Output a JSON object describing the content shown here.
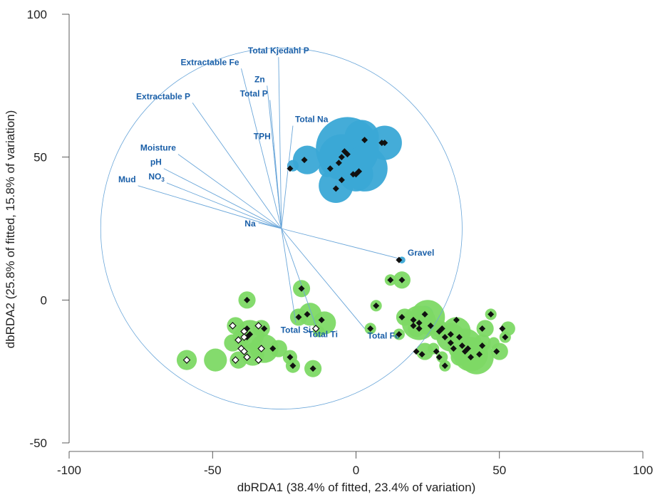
{
  "chart_data": {
    "type": "scatter",
    "title": "",
    "xlabel": "dbRDA1 (38.4% of fitted, 23.4% of variation)",
    "ylabel": "dbRDA2 (25.8% of fitted, 15.8% of variation)",
    "xlim": [
      -100,
      100
    ],
    "ylim": [
      -50,
      100
    ],
    "x_ticks": [
      "-100",
      "-50",
      "0",
      "50",
      "100"
    ],
    "y_ticks": [
      "100",
      "50",
      "0",
      "-50"
    ],
    "grid": false,
    "legend": "none",
    "colors": {
      "blue_bubble": "#3aa8d6",
      "green_bubble": "#7dd965",
      "vector": "#6aa6d9",
      "vector_label": "#1a5fa8",
      "marker": "#111111"
    },
    "circle": {
      "center": [
        -26,
        25
      ],
      "radius": 63
    },
    "vectors": [
      {
        "label": "Total Kjedahl P",
        "x": -27,
        "y": 85
      },
      {
        "label": "Extractable Fe",
        "x": -40,
        "y": 81
      },
      {
        "label": "Zn",
        "x": -31,
        "y": 75
      },
      {
        "label": "Total P",
        "x": -30,
        "y": 70
      },
      {
        "label": "Extractable P",
        "x": -57,
        "y": 69
      },
      {
        "label": "Total Na",
        "x": -22,
        "y": 61
      },
      {
        "label": "TPH",
        "x": -29,
        "y": 55
      },
      {
        "label": "Moisture",
        "x": -62,
        "y": 51
      },
      {
        "label": "pH",
        "x": -67,
        "y": 46
      },
      {
        "label": "NO",
        "sub": "3",
        "x": -66,
        "y": 41
      },
      {
        "label": "Mud",
        "x": -76,
        "y": 40
      },
      {
        "label": "Na",
        "x": -34,
        "y": 27
      },
      {
        "label": "Gravel",
        "x": 17,
        "y": 14
      },
      {
        "label": "Total Si",
        "x": -21,
        "y": -8
      },
      {
        "label": "Total Ti",
        "x": -14,
        "y": -9
      },
      {
        "label": "Total Fe",
        "x": 3,
        "y": -10
      }
    ],
    "series": [
      {
        "color": "blue",
        "points": [
          [
            -22,
            47,
            2
          ],
          [
            -17,
            49,
            5
          ],
          [
            -10,
            46,
            3
          ],
          [
            -7,
            40,
            6
          ],
          [
            -5,
            50,
            8
          ],
          [
            -3,
            53,
            11
          ],
          [
            0,
            44,
            6
          ],
          [
            2,
            57,
            6
          ],
          [
            3,
            46,
            8
          ],
          [
            10,
            55,
            6
          ],
          [
            16,
            14,
            1.2
          ],
          [
            24,
            -5,
            3
          ],
          [
            22,
            -7,
            2
          ]
        ]
      },
      {
        "color": "green",
        "points": [
          [
            -59,
            -21,
            3.5
          ],
          [
            -49,
            -21,
            4
          ],
          [
            -41,
            -21,
            3
          ],
          [
            -37,
            -12,
            5
          ],
          [
            -40,
            -13,
            3
          ],
          [
            -38,
            0,
            3
          ],
          [
            -33,
            -10,
            3
          ],
          [
            -32,
            -17,
            5
          ],
          [
            -36,
            -19,
            4
          ],
          [
            -43,
            -15,
            3
          ],
          [
            -42,
            -9,
            3
          ],
          [
            -27,
            -17,
            3
          ],
          [
            -23,
            -20,
            2.5
          ],
          [
            -22,
            -23,
            2.5
          ],
          [
            -20,
            -6,
            3
          ],
          [
            -19,
            4,
            3
          ],
          [
            -16,
            -5,
            4
          ],
          [
            -11,
            -8,
            4
          ],
          [
            -15,
            -24,
            3
          ],
          [
            -13,
            -11,
            2
          ],
          [
            5,
            -10,
            2
          ],
          [
            7,
            -2,
            2
          ],
          [
            12,
            7,
            2
          ],
          [
            16,
            7,
            3
          ],
          [
            15,
            -12,
            2
          ],
          [
            17,
            -6,
            3
          ],
          [
            21,
            -10,
            3
          ],
          [
            22,
            -8,
            6
          ],
          [
            25,
            -6,
            6
          ],
          [
            24,
            -18,
            3
          ],
          [
            27,
            -17,
            2
          ],
          [
            29,
            -10,
            3
          ],
          [
            33,
            -13,
            5
          ],
          [
            35,
            -11,
            5
          ],
          [
            38,
            -16,
            6
          ],
          [
            40,
            -19,
            6
          ],
          [
            42,
            -20,
            6
          ],
          [
            45,
            -10,
            3
          ],
          [
            44,
            -15,
            3
          ],
          [
            47,
            -5,
            2
          ],
          [
            50,
            -18,
            3
          ],
          [
            52,
            -13,
            2
          ],
          [
            53,
            -10,
            2.5
          ],
          [
            31,
            -23,
            2
          ],
          [
            30,
            -20,
            2
          ],
          [
            48,
            -15,
            2
          ],
          [
            36,
            -20,
            3
          ],
          [
            28,
            -12,
            2
          ]
        ]
      }
    ],
    "markers_filled": [
      [
        -23,
        46
      ],
      [
        -18,
        49
      ],
      [
        -9,
        46
      ],
      [
        -7,
        39
      ],
      [
        -6,
        48
      ],
      [
        -5,
        50
      ],
      [
        -4,
        52
      ],
      [
        -3,
        51
      ],
      [
        -1,
        44
      ],
      [
        0,
        44
      ],
      [
        1,
        45
      ],
      [
        -5,
        42
      ],
      [
        3,
        56
      ],
      [
        9,
        55
      ],
      [
        10,
        55
      ],
      [
        15,
        14
      ],
      [
        12,
        7
      ],
      [
        16,
        7
      ],
      [
        7,
        -2
      ],
      [
        5,
        -10
      ],
      [
        15,
        -12
      ],
      [
        16,
        -6
      ],
      [
        20,
        -7
      ],
      [
        20,
        -9
      ],
      [
        22,
        -8
      ],
      [
        24,
        -5
      ],
      [
        22,
        -10
      ],
      [
        21,
        -18
      ],
      [
        23,
        -19
      ],
      [
        26,
        -9
      ],
      [
        28,
        -18
      ],
      [
        29,
        -11
      ],
      [
        30,
        -10
      ],
      [
        31,
        -13
      ],
      [
        33,
        -12
      ],
      [
        33,
        -15
      ],
      [
        34,
        -17
      ],
      [
        35,
        -7
      ],
      [
        36,
        -13
      ],
      [
        37,
        -16
      ],
      [
        38,
        -18
      ],
      [
        39,
        -17
      ],
      [
        40,
        -20
      ],
      [
        43,
        -19
      ],
      [
        44,
        -16
      ],
      [
        44,
        -10
      ],
      [
        47,
        -5
      ],
      [
        49,
        -18
      ],
      [
        51,
        -10
      ],
      [
        52,
        -13
      ],
      [
        31,
        -23
      ],
      [
        29,
        -20
      ],
      [
        -38,
        0
      ],
      [
        -38,
        -10
      ],
      [
        -37,
        -12
      ],
      [
        -38,
        -13
      ],
      [
        -32,
        -10
      ],
      [
        -29,
        -17
      ],
      [
        -23,
        -20
      ],
      [
        -22,
        -23
      ],
      [
        -20,
        -6
      ],
      [
        -19,
        4
      ],
      [
        -17,
        -5
      ],
      [
        -12,
        -7
      ],
      [
        -15,
        -24
      ]
    ],
    "markers_open": [
      [
        -59,
        -21
      ],
      [
        -43,
        -9
      ],
      [
        -41,
        -14
      ],
      [
        -39,
        -11
      ],
      [
        -39,
        -13
      ],
      [
        -40,
        -17
      ],
      [
        -39,
        -18
      ],
      [
        -38,
        -20
      ],
      [
        -42,
        -21
      ],
      [
        -34,
        -9
      ],
      [
        -33,
        -17
      ],
      [
        -34,
        -21
      ],
      [
        -14,
        -10
      ]
    ]
  }
}
